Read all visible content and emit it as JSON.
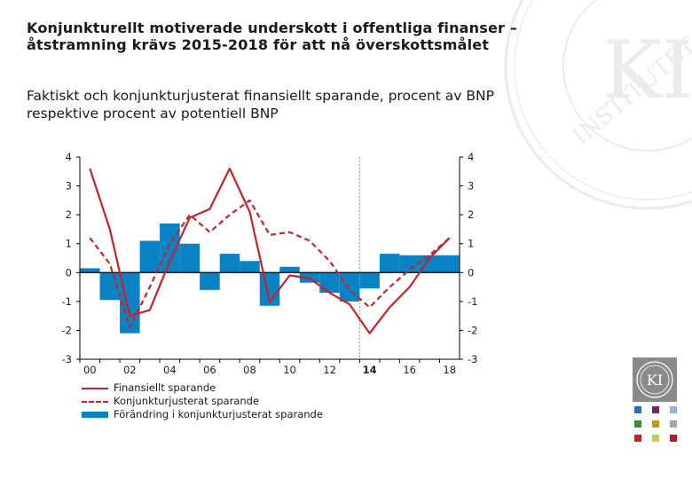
{
  "title": "Konjunkturellt motiverade underskott i offentliga finanser – åtstramning krävs 2015-2018 för att nå överskottsmålet",
  "subtitle": "Faktiskt och konjunkturjusterat finansiellt sparande, procent av BNP respektive procent av potentiell BNP",
  "seal": {
    "text_top": "INSTITUTET",
    "monogram": "KI"
  },
  "colors": {
    "line": "#cc2027",
    "bar": "#0a82c4",
    "axis": "#000000",
    "forecast_line": "#999999"
  },
  "chart_data": {
    "type": "bar+line",
    "x": [
      2000,
      2001,
      2002,
      2003,
      2004,
      2005,
      2006,
      2007,
      2008,
      2009,
      2010,
      2011,
      2012,
      2013,
      2014,
      2015,
      2016,
      2017,
      2018
    ],
    "x_tick_labels": [
      "00",
      "02",
      "04",
      "06",
      "08",
      "10",
      "12",
      "14",
      "16",
      "18"
    ],
    "x_tick_years": [
      2000,
      2002,
      2004,
      2006,
      2008,
      2010,
      2012,
      2014,
      2016,
      2018
    ],
    "bold_tick": "14",
    "ylim": [
      -3,
      4
    ],
    "y_ticks": [
      "4",
      "3",
      "2",
      "1",
      "0",
      "-1",
      "-2",
      "-3"
    ],
    "y_tick_values": [
      4,
      3,
      2,
      1,
      0,
      -1,
      -2,
      -3
    ],
    "forecast_start": 2014,
    "grid": false,
    "legend_position": "bottom-left",
    "series": [
      {
        "name": "Finansiellt sparande",
        "kind": "line",
        "style": "solid",
        "values": [
          3.6,
          1.5,
          -1.5,
          -1.3,
          0.4,
          1.9,
          2.2,
          3.6,
          2.1,
          -1.0,
          -0.1,
          -0.2,
          -0.7,
          -1.1,
          -2.1,
          -1.2,
          -0.5,
          0.5,
          1.2
        ]
      },
      {
        "name": "Konjunkturjusterat sparande",
        "kind": "line",
        "style": "dashed",
        "values": [
          1.2,
          0.3,
          -1.9,
          -0.5,
          1.0,
          2.0,
          1.4,
          2.0,
          2.5,
          1.3,
          1.4,
          1.1,
          0.4,
          -0.6,
          -1.2,
          -0.5,
          0.1,
          0.6,
          1.2
        ]
      },
      {
        "name": "Förändring i konjunkturjusterat sparande",
        "kind": "bar",
        "values": [
          0.15,
          -0.95,
          -2.1,
          1.1,
          1.7,
          1.0,
          -0.6,
          0.65,
          0.4,
          -1.15,
          0.2,
          -0.35,
          -0.7,
          -1.0,
          -0.55,
          0.65,
          0.6,
          0.6,
          0.6
        ]
      }
    ]
  }
}
